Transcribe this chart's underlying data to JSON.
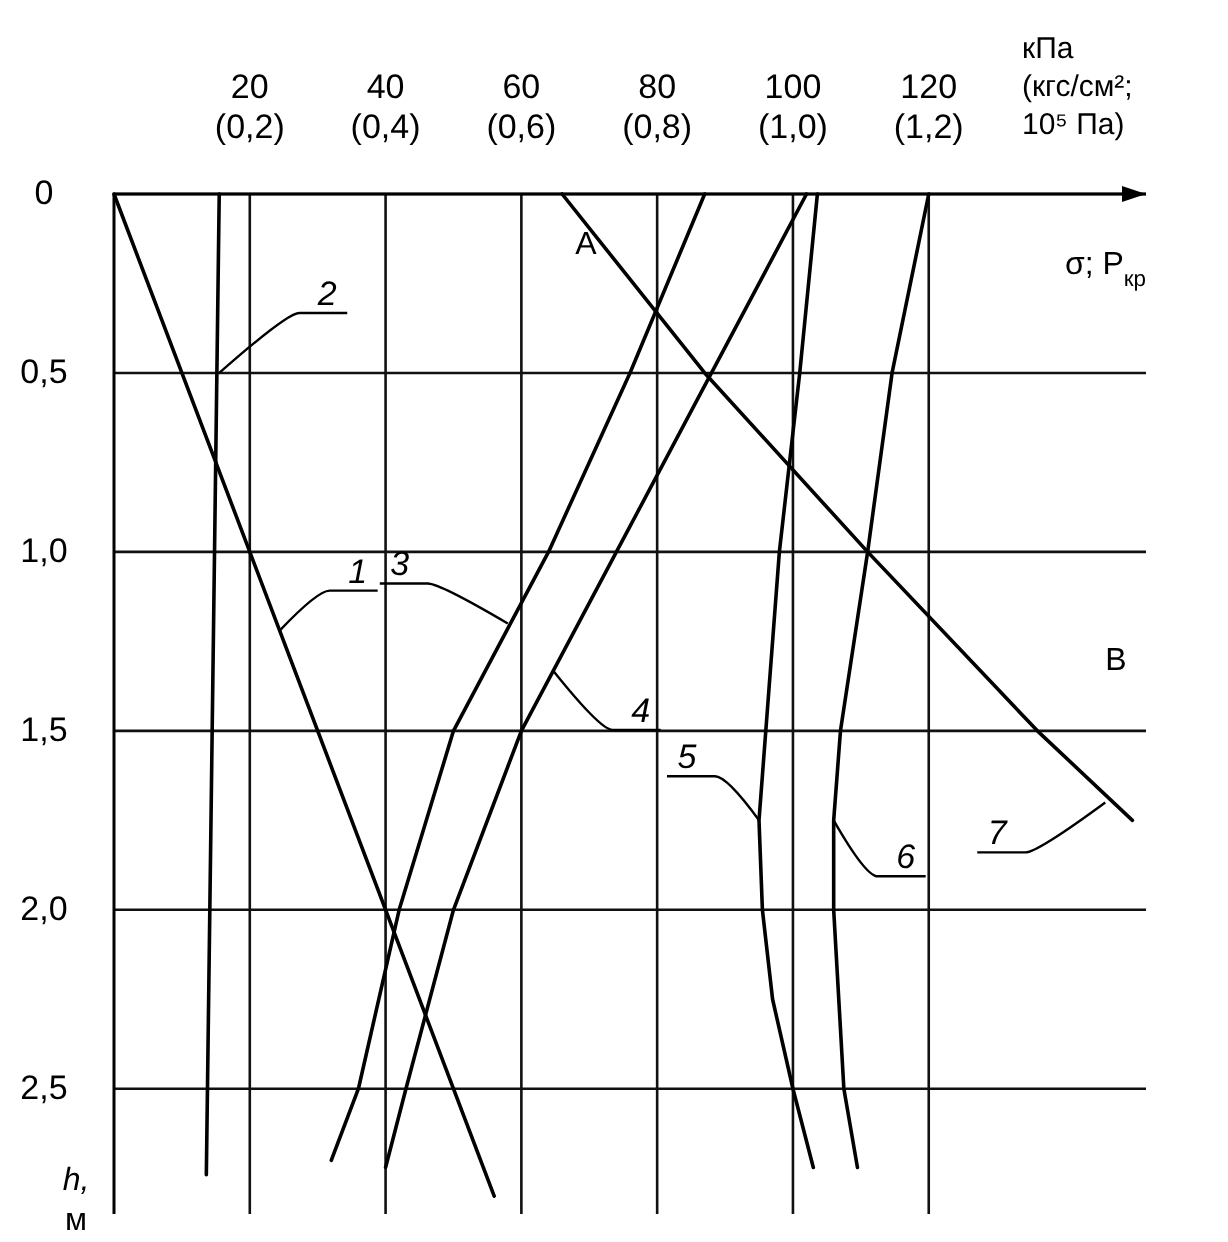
{
  "chart_data": {
    "type": "line",
    "xlabel": "кПа",
    "ylabel": "h, м",
    "xlim": [
      0,
      152
    ],
    "ylim": [
      2.85,
      0
    ],
    "xticks": [
      20,
      40,
      60,
      80,
      100,
      120
    ],
    "x2lim": [
      0,
      1.52
    ],
    "x2label": "(кгс/см²; 10⁵ Па)",
    "x2ticks": [
      {
        "value": 0.2,
        "label": "(0,2)"
      },
      {
        "value": 0.4,
        "label": "(0,4)"
      },
      {
        "value": 0.6,
        "label": "(0,6)"
      },
      {
        "value": 0.8,
        "label": "(0,8)"
      },
      {
        "value": 1,
        "label": "(1,0)"
      },
      {
        "value": 1.2,
        "label": "(1,2)"
      }
    ],
    "yticks": [
      0,
      {
        "value": 0.5,
        "label": "0,5"
      },
      {
        "value": 1,
        "label": "1,0"
      },
      {
        "value": 1.5,
        "label": "1,5"
      },
      {
        "value": 2,
        "label": "2,0"
      },
      {
        "value": 2.5,
        "label": "2,5"
      }
    ],
    "grid": true,
    "line_style": "solid",
    "series": [
      {
        "color": "#000000",
        "x": [
          0,
          56
        ],
        "values": [
          0,
          2.8
        ]
      },
      {
        "color": "#000000",
        "x": [
          15.5,
          13.6
        ],
        "values": [
          0,
          2.74
        ]
      },
      {
        "color": "#000000",
        "x": [
          87,
          76,
          64,
          50,
          42,
          36,
          32
        ],
        "values": [
          0,
          0.5,
          1,
          1.5,
          2,
          2.5,
          2.7
        ]
      },
      {
        "color": "#000000",
        "x": [
          102,
          88,
          74,
          60,
          50,
          43,
          40
        ],
        "values": [
          0,
          0.5,
          1,
          1.5,
          2,
          2.5,
          2.72
        ]
      },
      {
        "color": "#000000",
        "x": [
          103.6,
          101,
          98,
          96,
          95,
          95.5,
          97,
          100,
          103
        ],
        "values": [
          0,
          0.5,
          1,
          1.5,
          1.75,
          2,
          2.25,
          2.5,
          2.72
        ]
      },
      {
        "color": "#000000",
        "x": [
          120,
          114.6,
          111,
          107,
          106,
          106,
          107.5,
          109.5
        ],
        "values": [
          0,
          0.5,
          1,
          1.5,
          1.75,
          2,
          2.5,
          2.72
        ]
      },
      {
        "color": "#000000",
        "x": [
          66,
          87,
          111,
          136,
          150
        ],
        "values": [
          0,
          0.5,
          1,
          1.5,
          1.75
        ]
      }
    ],
    "annotations": [
      "σ; P$_{кр}$",
      "A",
      "B",
      {
        "text": "1",
        "x": 24.4,
        "y": 1.22
      },
      {
        "text": "2",
        "x": 15.5,
        "y": 0.5
      },
      {
        "text": "3",
        "x": 58,
        "y": 1.2
      },
      {
        "text": "4",
        "x": 64.6,
        "y": 1.33
      },
      {
        "text": "5",
        "x": 95,
        "y": 1.75
      },
      {
        "text": "6",
        "x": 106,
        "y": 1.75
      },
      {
        "text": "7",
        "x": 146,
        "y": 1.7
      }
    ]
  }
}
